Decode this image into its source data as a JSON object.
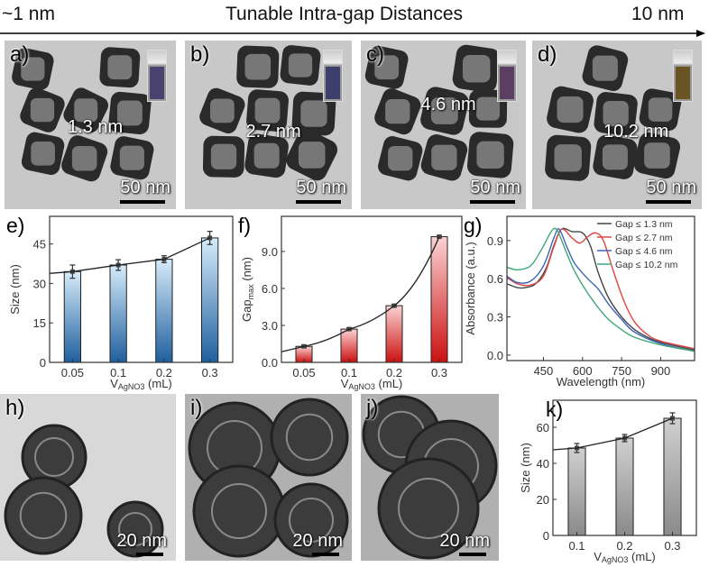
{
  "header": {
    "left": "~1 nm",
    "title": "Tunable Intra-gap Distances",
    "right": "10 nm"
  },
  "tem_top": [
    {
      "label": "a)",
      "gap": "1.3 nm",
      "scale": "50 nm",
      "vial_color": "#4a4270"
    },
    {
      "label": "b)",
      "gap": "2.7 nm",
      "scale": "50 nm",
      "vial_color": "#3c3f6e"
    },
    {
      "label": "c)",
      "gap": "4.6 nm",
      "scale": "50 nm",
      "vial_color": "#5a3f62"
    },
    {
      "label": "d)",
      "gap": "10.2 nm",
      "scale": "50 nm",
      "vial_color": "#6b5424"
    }
  ],
  "tem_bottom": [
    {
      "label": "h)",
      "scale": "20 nm"
    },
    {
      "label": "i)",
      "scale": "20 nm"
    },
    {
      "label": "j)",
      "scale": "20 nm"
    }
  ],
  "chart_data": [
    {
      "id": "e",
      "panel": "e)",
      "type": "bar",
      "categories": [
        "0.05",
        "0.1",
        "0.2",
        "0.3"
      ],
      "values": [
        34.5,
        37,
        39.2,
        47.3
      ],
      "errors": [
        2.5,
        2,
        1.3,
        2.5
      ],
      "ylabel": "Size (nm)",
      "xlabel_main": "V",
      "xlabel_sub": "AgNO3",
      "xlabel_unit": " (mL)",
      "ylim": [
        0,
        55.5
      ],
      "yticks": [
        "0",
        "15",
        "30",
        "45"
      ],
      "ytick_values": [
        0,
        15,
        30,
        45
      ],
      "colors": [
        "#d6ecfa",
        "#1f5f9e"
      ],
      "fit_line": true
    },
    {
      "id": "f",
      "panel": "f)",
      "type": "bar",
      "categories": [
        "0.05",
        "0.1",
        "0.2",
        "0.3"
      ],
      "values": [
        1.3,
        2.7,
        4.6,
        10.2
      ],
      "errors": [
        0.1,
        0.1,
        0.1,
        0.1
      ],
      "ylabel_main": "Gap",
      "ylabel_sub": "max",
      "ylabel_unit": " (nm)",
      "xlabel_main": "V",
      "xlabel_sub": "AgNO3",
      "xlabel_unit": " (mL)",
      "ylim": [
        0,
        11.85
      ],
      "yticks": [
        "0.0",
        "3.0",
        "6.0",
        "9.0"
      ],
      "ytick_values": [
        0,
        3,
        6,
        9
      ],
      "colors": [
        "#fbd3d3",
        "#cc1010"
      ],
      "fit_line": true
    },
    {
      "id": "g",
      "panel": "g)",
      "type": "line",
      "xlabel": "Wavelength (nm)",
      "ylabel": "Absorbance (a.u.)",
      "xlim": [
        310,
        1030
      ],
      "ylim": [
        -0.043,
        1.09
      ],
      "xticks": [
        "450",
        "600",
        "750",
        "900"
      ],
      "xtick_values": [
        450,
        600,
        750,
        900
      ],
      "yticks": [
        "0.0",
        "0.3",
        "0.6",
        "0.9"
      ],
      "ytick_values": [
        0,
        0.3,
        0.6,
        0.9
      ],
      "legend_position": "top-right",
      "series": [
        {
          "name": "Gap ≤ 1.3 nm",
          "color": "#444444",
          "x": [
            310,
            350,
            380,
            420,
            460,
            490,
            520,
            560,
            600,
            630,
            660,
            700,
            750,
            800,
            850,
            900,
            1030
          ],
          "y": [
            0.56,
            0.53,
            0.53,
            0.56,
            0.68,
            0.86,
            0.99,
            0.97,
            0.96,
            0.86,
            0.65,
            0.45,
            0.3,
            0.2,
            0.14,
            0.1,
            0.04
          ]
        },
        {
          "name": "Gap ≤ 2.7 nm",
          "color": "#e04545",
          "x": [
            310,
            350,
            400,
            450,
            490,
            520,
            560,
            590,
            620,
            650,
            680,
            720,
            760,
            800,
            850,
            900,
            1030
          ],
          "y": [
            0.61,
            0.56,
            0.55,
            0.62,
            0.85,
            0.99,
            0.92,
            0.88,
            0.93,
            0.96,
            0.9,
            0.65,
            0.42,
            0.26,
            0.16,
            0.11,
            0.05
          ]
        },
        {
          "name": "Gap ≤ 4.6 nm",
          "color": "#3a66b8",
          "x": [
            310,
            350,
            400,
            450,
            490,
            510,
            540,
            570,
            620,
            660,
            700,
            750,
            800,
            900,
            1030
          ],
          "y": [
            0.62,
            0.57,
            0.58,
            0.7,
            0.92,
            0.99,
            0.85,
            0.72,
            0.6,
            0.52,
            0.4,
            0.28,
            0.18,
            0.09,
            0.03
          ]
        },
        {
          "name": "Gap ≤ 10.2 nm",
          "color": "#3fa878",
          "x": [
            310,
            350,
            400,
            440,
            480,
            500,
            520,
            560,
            600,
            650,
            700,
            750,
            800,
            900,
            1030
          ],
          "y": [
            0.69,
            0.67,
            0.7,
            0.82,
            0.97,
            0.99,
            0.9,
            0.7,
            0.55,
            0.4,
            0.28,
            0.2,
            0.14,
            0.08,
            0.03
          ]
        }
      ]
    },
    {
      "id": "k",
      "panel": "k)",
      "type": "bar",
      "categories": [
        "0.1",
        "0.2",
        "0.3"
      ],
      "values": [
        48.5,
        54,
        65
      ],
      "errors": [
        2.5,
        2,
        3
      ],
      "ylabel": "Size (nm)",
      "xlabel_main": "V",
      "xlabel_sub": "AgNO3",
      "xlabel_unit": " (mL)",
      "ylim": [
        0,
        75
      ],
      "yticks": [
        "0",
        "20",
        "40",
        "60"
      ],
      "ytick_values": [
        0,
        20,
        40,
        60
      ],
      "colors": [
        "#d0d0d0",
        "#8a8a8a"
      ],
      "fit_line": true
    }
  ]
}
